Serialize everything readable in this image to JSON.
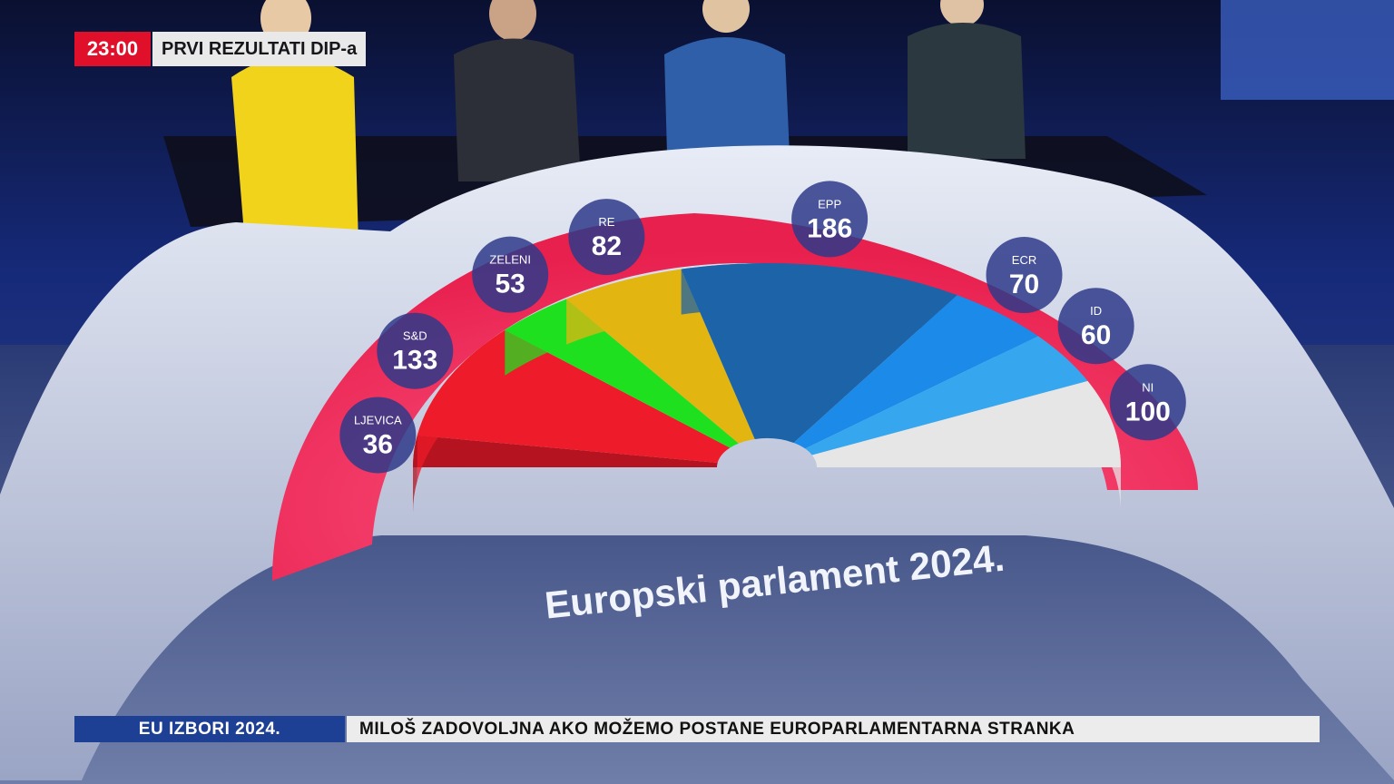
{
  "broadcast": {
    "time": "23:00",
    "program_label": "PRVI REZULTATI DIP-a",
    "ticker_section": "EU IZBORI 2024.",
    "ticker_headline": "MILOŠ ZADOVOLJNA AKO MOŽEMO POSTANE EUROPARLAMENTARNA STRANKA"
  },
  "chart_data": {
    "type": "pie",
    "subtype": "semicircle-hemicycle",
    "title": "Europski parlament 2024.",
    "series": [
      {
        "name": "LJEVICA",
        "value": 36,
        "color": "#b5131f"
      },
      {
        "name": "S&D",
        "value": 133,
        "color": "#ee1b2a"
      },
      {
        "name": "ZELENI",
        "value": 53,
        "color": "#1fe01f"
      },
      {
        "name": "RE",
        "value": 82,
        "color": "#e2b511"
      },
      {
        "name": "EPP",
        "value": 186,
        "color": "#1c63a8"
      },
      {
        "name": "ECR",
        "value": 70,
        "color": "#1b8ae8"
      },
      {
        "name": "ID",
        "value": 60,
        "color": "#36a7ee"
      },
      {
        "name": "NI",
        "value": 100,
        "color": "#e6e6e6"
      }
    ]
  }
}
